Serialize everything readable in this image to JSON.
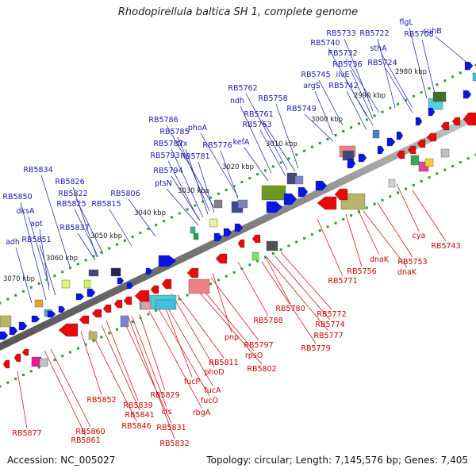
{
  "title": "Rhodopirellula baltica SH 1, complete genome",
  "footer": {
    "accession": "Accession: NC_005027",
    "topology": "Topology: circular; Length: 7,145,576 bp; Genes: 7,405"
  },
  "colors": {
    "forward_label": "#1a1aaa",
    "reverse_label": "#cc0000",
    "forward_gene": "#0a14e6",
    "reverse_gene": "#e80a0a",
    "backbone": "#8a8a8a",
    "ruler": "#2aa02a"
  },
  "scale_labels": [
    "2980 kbp",
    "2990 kbp",
    "3000 kbp",
    "3010 kbp",
    "3020 kbp",
    "3030 kbp",
    "3040 kbp",
    "3050 kbp",
    "3060 kbp",
    "3070 kbp"
  ],
  "forward_labels": [
    "RB5733",
    "RB5722",
    "flgL",
    "RB5708",
    "suhB",
    "RB5740",
    "RB5732",
    "sthA",
    "RB5736",
    "RB5724",
    "RB5745",
    "ilvE",
    "argS",
    "RB5742",
    "RB5762",
    "RB5758",
    "ndh",
    "RB5761",
    "RB5749",
    "RB5763",
    "RB5786",
    "phoA",
    "RB5785",
    "trx",
    "RB5776",
    "RB5787",
    "kefA",
    "RB5793",
    "RB5781",
    "RB5794",
    "RB5834",
    "ptsN",
    "RB5826",
    "RB5822",
    "RB5850",
    "RB5806",
    "RB5825",
    "RB5815",
    "dksA",
    "apt",
    "RB5837",
    "RB5851",
    "adh"
  ],
  "reverse_labels": [
    "cya",
    "RB5743",
    "dnaK",
    "RB5753",
    "dnaK",
    "RB5756",
    "RB5771",
    "RB5772",
    "RB5780",
    "RB5774",
    "RB5788",
    "RB5777",
    "RB5779",
    "pnp",
    "RB5797",
    "rpsO",
    "RB5802",
    "RB5811",
    "phoD",
    "fucP",
    "fucA",
    "fucO",
    "RB5829",
    "cls",
    "rbgA",
    "RB5852",
    "RB5839",
    "RB5841",
    "RB5846",
    "RB5831",
    "RB5832",
    "RB5860",
    "RB5861",
    "RB5877"
  ]
}
